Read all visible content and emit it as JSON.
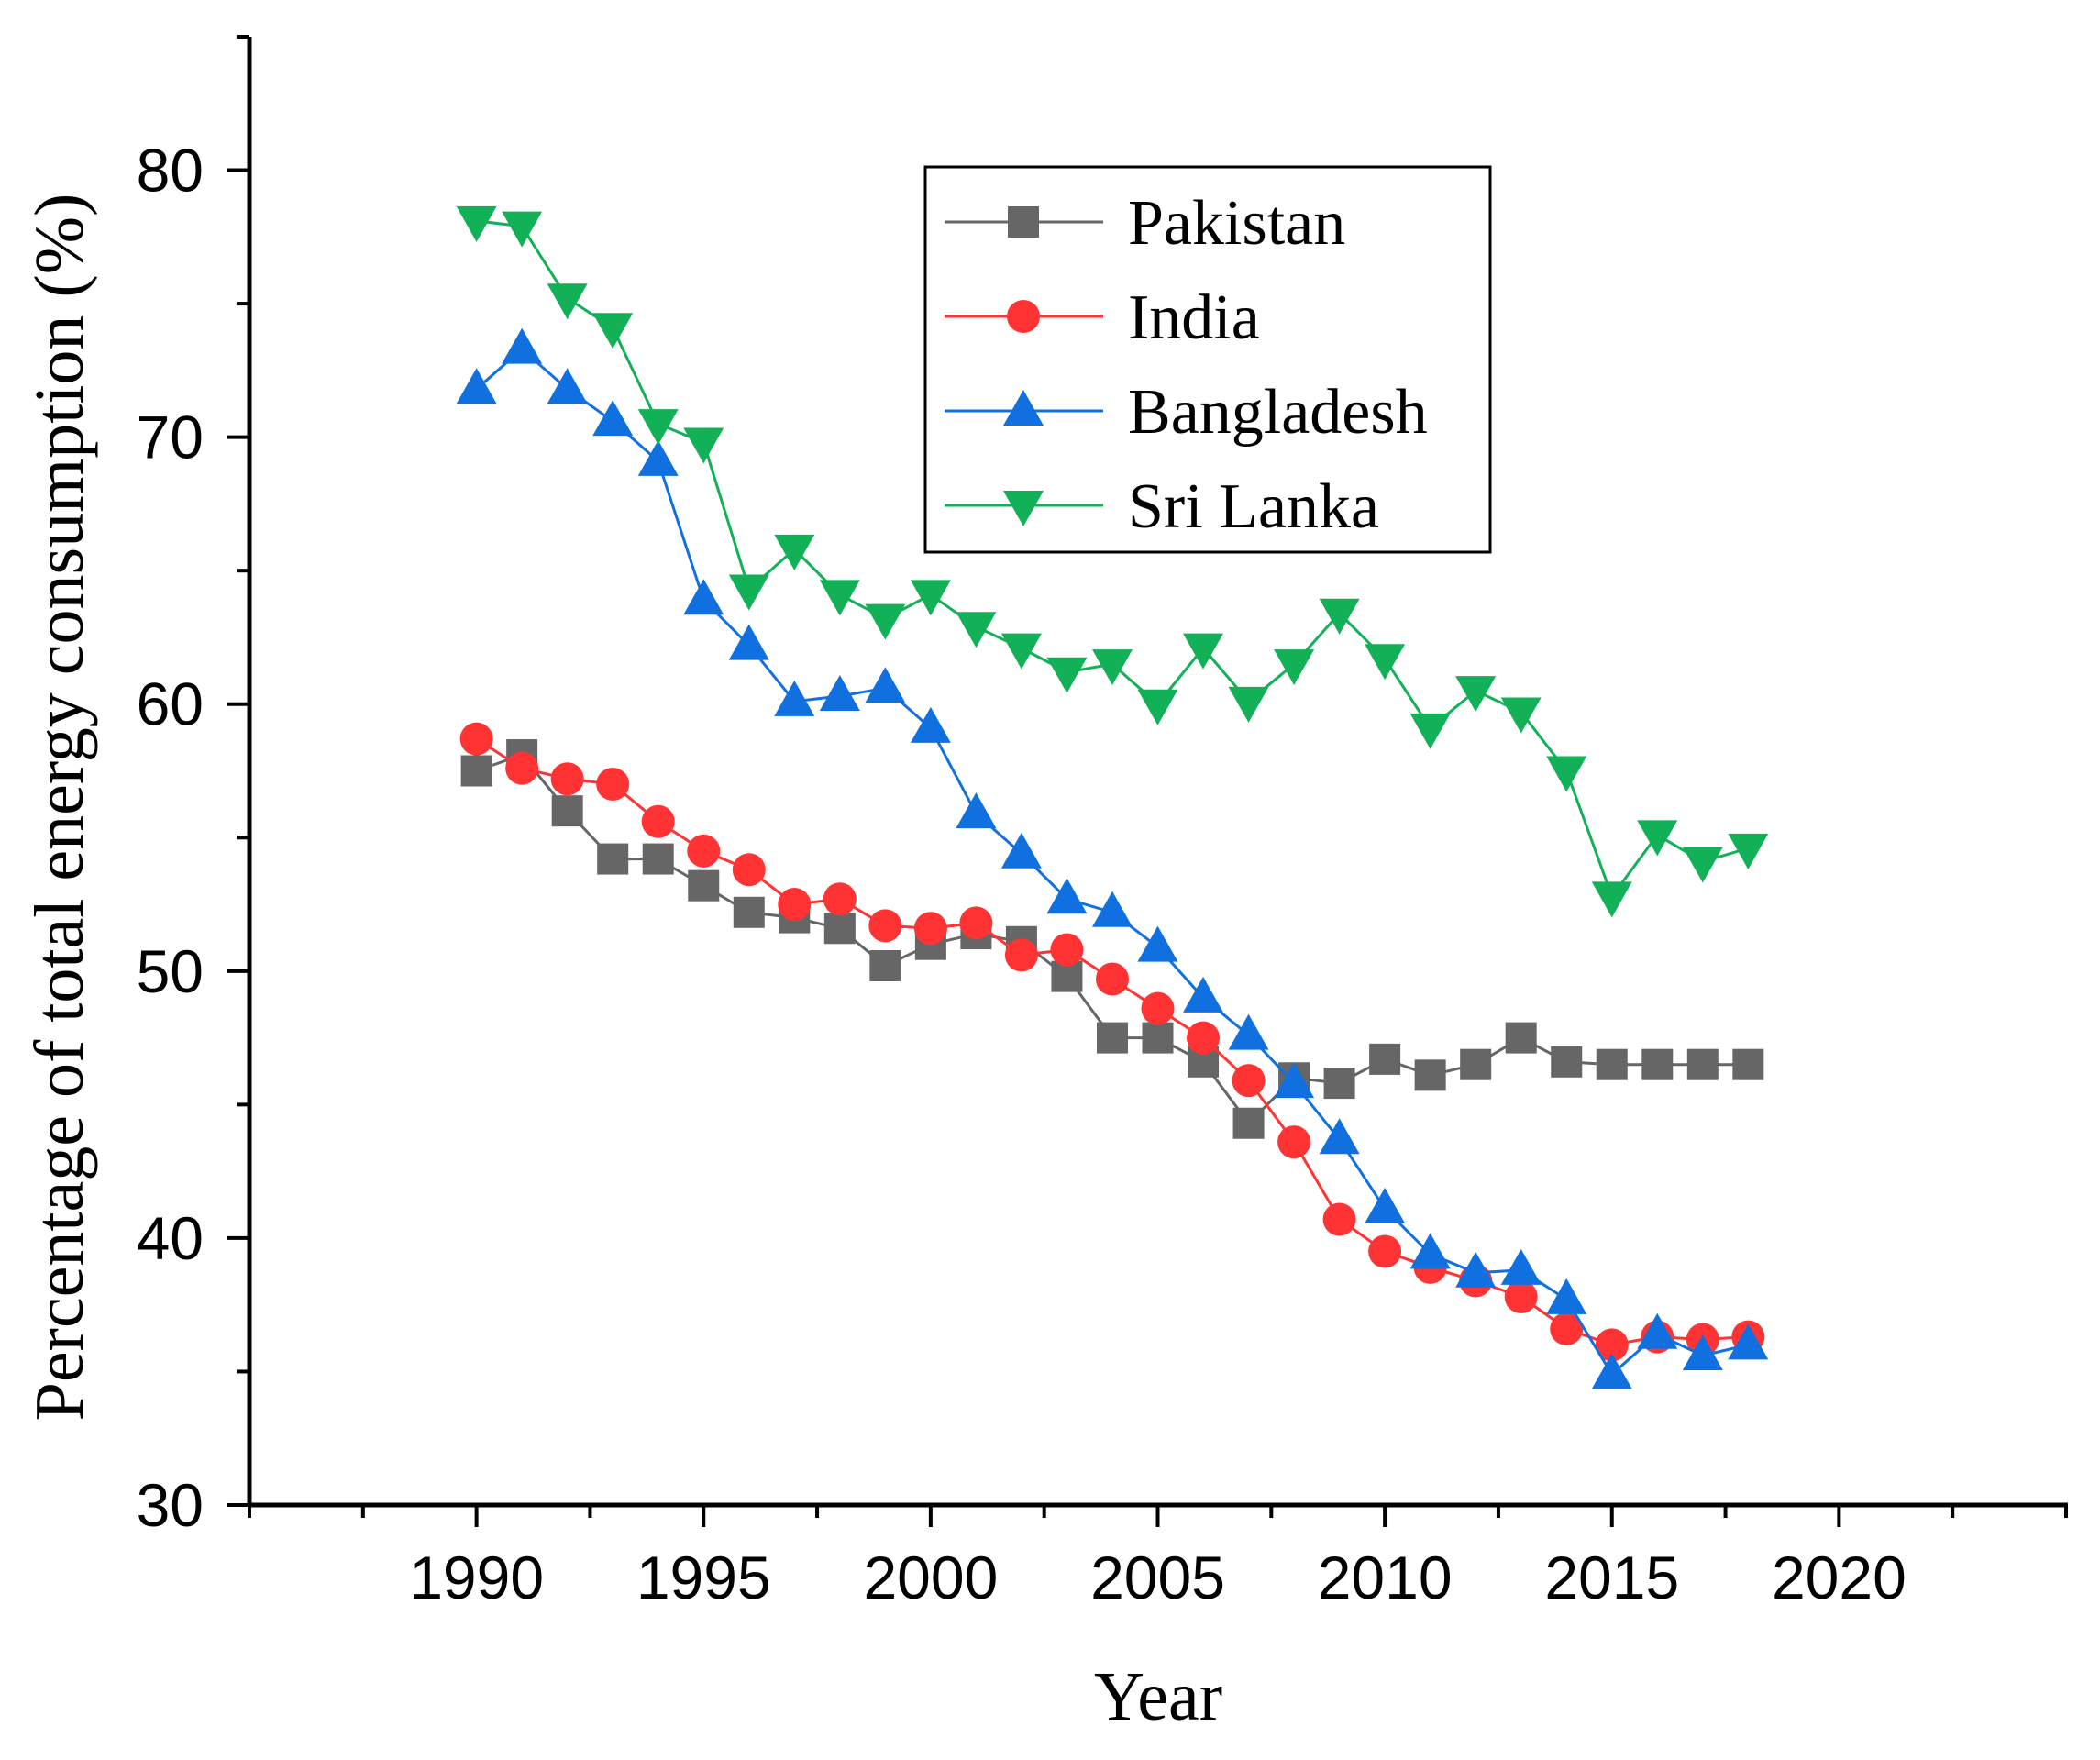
{
  "chart_data": {
    "type": "line",
    "title": "",
    "xlabel": "Year",
    "ylabel": "Percentage of total energy consumption (%)",
    "xlim": [
      1985,
      2025
    ],
    "ylim": [
      30,
      85
    ],
    "x_ticks": [
      1990,
      1995,
      2000,
      2005,
      2010,
      2015,
      2020
    ],
    "x_tick_labels": [
      "1990",
      "1995",
      "2000",
      "2005",
      "2010",
      "2015",
      "2020"
    ],
    "y_ticks": [
      30,
      40,
      50,
      60,
      70,
      80
    ],
    "y_tick_labels": [
      "30",
      "40",
      "50",
      "60",
      "70",
      "80"
    ],
    "legend_position": "top-center",
    "x": [
      1990,
      1991,
      1992,
      1993,
      1994,
      1995,
      1996,
      1997,
      1998,
      1999,
      2000,
      2001,
      2002,
      2003,
      2004,
      2005,
      2006,
      2007,
      2008,
      2009,
      2010,
      2011,
      2012,
      2013,
      2014,
      2015,
      2016,
      2017,
      2018
    ],
    "series": [
      {
        "name": "Pakistan",
        "color": "#666666",
        "marker": "square",
        "values": [
          57.5,
          58.1,
          56.0,
          54.2,
          54.2,
          53.2,
          52.2,
          52.0,
          51.6,
          50.2,
          51.0,
          51.4,
          51.1,
          49.8,
          47.5,
          47.5,
          46.6,
          44.3,
          46.0,
          45.8,
          46.7,
          46.1,
          46.5,
          47.5,
          46.6,
          46.5,
          46.5,
          46.5,
          46.5
        ]
      },
      {
        "name": "India",
        "color": "#FF3333",
        "marker": "circle",
        "values": [
          58.7,
          57.6,
          57.2,
          57.0,
          55.6,
          54.5,
          53.8,
          52.5,
          52.7,
          51.7,
          51.6,
          51.8,
          50.6,
          50.8,
          49.7,
          48.6,
          47.5,
          45.9,
          43.6,
          40.7,
          39.5,
          38.9,
          38.4,
          37.8,
          36.6,
          36.0,
          36.3,
          36.2,
          36.3
        ]
      },
      {
        "name": "Bangladesh",
        "color": "#1170E0",
        "marker": "triangle-up",
        "values": [
          71.8,
          73.3,
          71.8,
          70.6,
          69.1,
          63.9,
          62.2,
          60.1,
          60.3,
          60.6,
          59.1,
          55.9,
          54.4,
          52.7,
          52.2,
          50.9,
          49.0,
          47.6,
          45.8,
          43.7,
          41.1,
          39.4,
          38.7,
          38.8,
          37.7,
          34.9,
          36.4,
          35.6,
          36.0
        ]
      },
      {
        "name": "Sri Lanka",
        "color": "#13B157",
        "marker": "triangle-down",
        "values": [
          78.1,
          77.9,
          75.2,
          74.1,
          70.5,
          69.8,
          64.3,
          65.8,
          64.1,
          63.2,
          64.1,
          62.9,
          62.1,
          61.2,
          61.5,
          60.0,
          62.1,
          60.1,
          61.5,
          63.4,
          61.7,
          59.1,
          60.5,
          59.7,
          57.5,
          52.8,
          55.1,
          54.1,
          54.6
        ]
      }
    ]
  }
}
